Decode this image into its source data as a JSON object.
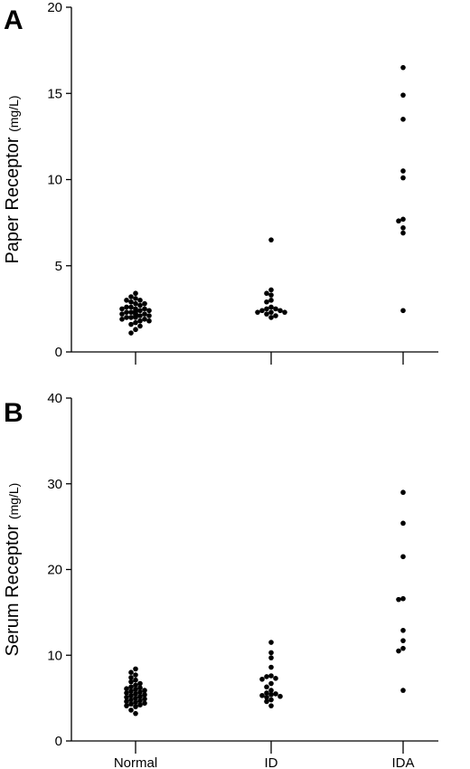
{
  "chart_data": [
    {
      "type": "scatter",
      "panel_label": "A",
      "ylabel": "Paper Receptor",
      "ylabel_unit": "(mg/L)",
      "xlabel": "",
      "categories": [
        "Normal",
        "ID",
        "IDA"
      ],
      "show_category_labels": false,
      "ylim": [
        0,
        20
      ],
      "yticks": [
        0,
        5,
        10,
        15,
        20
      ],
      "grid": false,
      "series": [
        {
          "category": "Normal",
          "values": [
            3.4,
            3.2,
            3.1,
            3.0,
            3.0,
            2.9,
            2.8,
            2.8,
            2.7,
            2.6,
            2.6,
            2.5,
            2.5,
            2.5,
            2.4,
            2.4,
            2.4,
            2.3,
            2.3,
            2.3,
            2.2,
            2.2,
            2.2,
            2.2,
            2.1,
            2.1,
            2.1,
            2.0,
            2.0,
            2.0,
            1.9,
            1.9,
            1.8,
            1.8,
            1.7,
            1.6,
            1.5,
            1.3,
            1.1
          ]
        },
        {
          "category": "ID",
          "values": [
            6.5,
            3.6,
            3.4,
            3.3,
            3.0,
            2.9,
            2.6,
            2.5,
            2.5,
            2.4,
            2.4,
            2.3,
            2.3,
            2.3,
            2.2,
            2.1,
            2.0
          ]
        },
        {
          "category": "IDA",
          "values": [
            16.5,
            14.9,
            13.5,
            10.5,
            10.1,
            7.7,
            7.6,
            7.2,
            6.9,
            2.4
          ]
        }
      ]
    },
    {
      "type": "scatter",
      "panel_label": "B",
      "ylabel": "Serum Receptor",
      "ylabel_unit": "(mg/L)",
      "xlabel": "",
      "categories": [
        "Normal",
        "ID",
        "IDA"
      ],
      "show_category_labels": true,
      "ylim": [
        0,
        40
      ],
      "yticks": [
        0,
        10,
        20,
        30,
        40
      ],
      "grid": false,
      "series": [
        {
          "category": "Normal",
          "values": [
            8.4,
            8.0,
            7.7,
            7.4,
            7.1,
            6.9,
            6.7,
            6.5,
            6.3,
            6.2,
            6.1,
            6.0,
            5.9,
            5.8,
            5.7,
            5.6,
            5.5,
            5.4,
            5.3,
            5.2,
            5.1,
            5.0,
            4.9,
            4.8,
            4.7,
            4.6,
            4.5,
            4.4,
            4.3,
            4.2,
            4.1,
            4.0,
            3.6,
            3.2
          ]
        },
        {
          "category": "ID",
          "values": [
            11.5,
            10.3,
            9.7,
            8.6,
            7.6,
            7.5,
            7.3,
            7.2,
            6.7,
            6.3,
            5.9,
            5.6,
            5.5,
            5.4,
            5.3,
            5.2,
            5.1,
            4.8,
            4.6,
            4.1
          ]
        },
        {
          "category": "IDA",
          "values": [
            29.0,
            25.4,
            21.5,
            16.6,
            16.5,
            12.9,
            11.7,
            10.8,
            10.5,
            5.9
          ]
        }
      ]
    }
  ]
}
